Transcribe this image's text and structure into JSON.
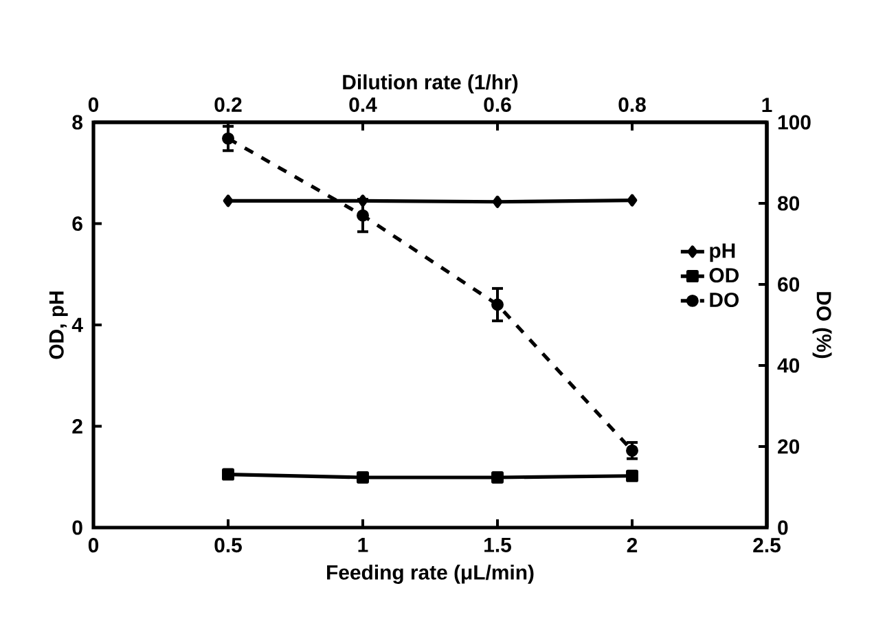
{
  "chart_data": {
    "type": "line",
    "xlabel": "Feeding rate (μL/min)",
    "ylabel": "OD, pH",
    "y2label": "DO (%)",
    "x2label": "Dilution rate (1/hr)",
    "x": [
      0.5,
      1,
      1.5,
      2
    ],
    "series": [
      {
        "name": "pH",
        "color": "#000000",
        "values": [
          6.45,
          6.45,
          6.43,
          6.46
        ],
        "marker": "diamond",
        "line_style": "solid"
      },
      {
        "name": "OD",
        "color": "#000000",
        "values": [
          1.05,
          0.99,
          0.99,
          1.02
        ],
        "marker": "square",
        "line_style": "solid"
      },
      {
        "name": "DO",
        "color": "#000000",
        "values": [
          96,
          77,
          55,
          19
        ],
        "errors": [
          3,
          4,
          4,
          2
        ],
        "marker": "circle",
        "line_style": "dashed",
        "axis": "y2"
      }
    ],
    "xlim": [
      0,
      2.5
    ],
    "xticks": [
      0,
      0.5,
      1,
      1.5,
      2,
      2.5
    ],
    "ylim": [
      0,
      8
    ],
    "yticks": [
      0,
      2,
      4,
      6,
      8
    ],
    "y2lim": [
      0,
      100
    ],
    "y2ticks": [
      0,
      20,
      40,
      60,
      80,
      100
    ],
    "x2lim": [
      0,
      1
    ],
    "x2ticks": [
      0,
      0.2,
      0.4,
      0.6,
      0.8,
      1
    ],
    "legend": "right",
    "grid": false
  }
}
